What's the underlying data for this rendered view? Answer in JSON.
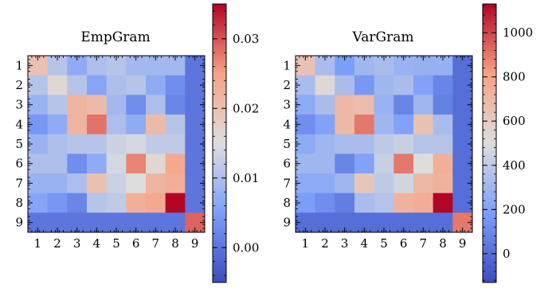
{
  "chart_data": [
    {
      "type": "heatmap",
      "title": "EmpGram",
      "xlabel": "",
      "ylabel": "",
      "x_ticks": [
        "1",
        "2",
        "3",
        "4",
        "5",
        "6",
        "7",
        "8",
        "9"
      ],
      "y_ticks": [
        "1",
        "2",
        "3",
        "4",
        "5",
        "6",
        "7",
        "8",
        "9"
      ],
      "colorbar": {
        "cmap": "coolwarm",
        "range": [
          -0.005,
          0.035
        ],
        "ticks": [
          0.0,
          0.01,
          0.02,
          0.03
        ],
        "tick_labels": [
          "0.00",
          "0.01",
          "0.02",
          "0.03"
        ]
      },
      "values": [
        [
          0.02,
          0.011,
          0.007,
          0.01,
          0.011,
          0.009,
          0.009,
          0.009,
          0.0
        ],
        [
          0.011,
          0.016,
          0.011,
          0.006,
          0.01,
          0.011,
          0.007,
          0.003,
          0.0
        ],
        [
          0.008,
          0.011,
          0.022,
          0.021,
          0.009,
          0.003,
          0.01,
          0.002,
          0.0
        ],
        [
          0.004,
          0.007,
          0.022,
          0.028,
          0.01,
          0.007,
          0.021,
          0.011,
          0.0
        ],
        [
          0.008,
          0.01,
          0.011,
          0.011,
          0.013,
          0.014,
          0.012,
          0.012,
          0.0
        ],
        [
          0.01,
          0.01,
          0.003,
          0.007,
          0.014,
          0.027,
          0.016,
          0.024,
          0.0
        ],
        [
          0.008,
          0.008,
          0.01,
          0.02,
          0.013,
          0.015,
          0.022,
          0.023,
          0.0
        ],
        [
          0.006,
          0.004,
          0.002,
          0.011,
          0.012,
          0.023,
          0.024,
          0.036,
          0.0
        ],
        [
          0.0,
          0.0,
          0.0,
          0.0,
          0.0,
          0.0,
          0.0,
          0.0,
          0.029
        ]
      ]
    },
    {
      "type": "heatmap",
      "title": "VarGram",
      "xlabel": "",
      "ylabel": "",
      "x_ticks": [
        "1",
        "2",
        "3",
        "4",
        "5",
        "6",
        "7",
        "8",
        "9"
      ],
      "y_ticks": [
        "1",
        "2",
        "3",
        "4",
        "5",
        "6",
        "7",
        "8",
        "9"
      ],
      "colorbar": {
        "cmap": "coolwarm",
        "range": [
          -130,
          1130
        ],
        "ticks": [
          0,
          200,
          400,
          600,
          800,
          1000
        ],
        "tick_labels": [
          "0",
          "200",
          "400",
          "600",
          "800",
          "1000"
        ]
      },
      "values": [
        [
          650,
          330,
          180,
          300,
          330,
          280,
          270,
          270,
          0
        ],
        [
          330,
          530,
          330,
          160,
          300,
          330,
          200,
          90,
          0
        ],
        [
          240,
          330,
          700,
          680,
          280,
          90,
          300,
          70,
          0
        ],
        [
          120,
          200,
          700,
          900,
          300,
          200,
          650,
          330,
          0
        ],
        [
          240,
          300,
          330,
          330,
          400,
          430,
          370,
          370,
          0
        ],
        [
          300,
          300,
          90,
          200,
          430,
          900,
          500,
          750,
          0
        ],
        [
          240,
          240,
          300,
          630,
          400,
          460,
          700,
          730,
          0
        ],
        [
          180,
          120,
          60,
          330,
          370,
          730,
          760,
          1150,
          0
        ],
        [
          0,
          0,
          0,
          0,
          0,
          0,
          0,
          0,
          900
        ]
      ]
    }
  ]
}
